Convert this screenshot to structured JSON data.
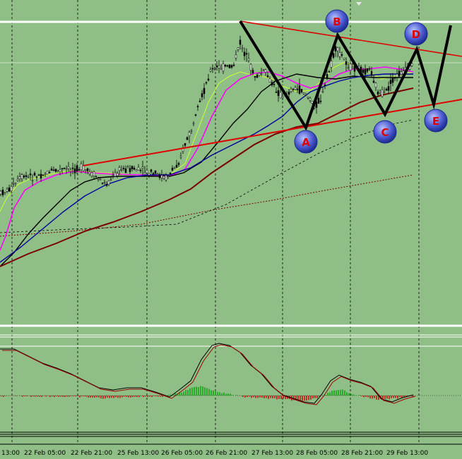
{
  "chart_data": {
    "type": "line",
    "x_tick_labels": [
      "13:00",
      "22 Feb 05:00",
      "22 Feb 21:00",
      "25 Feb 13:00",
      "26 Feb 05:00",
      "26 Feb 21:00",
      "27 Feb 13:00",
      "28 Feb 05:00",
      "28 Feb 21:00",
      "29 Feb 13:00"
    ],
    "wave_labels": [
      "A",
      "B",
      "C",
      "D",
      "E"
    ],
    "grid": true,
    "colors": {
      "background": "#8fbf87",
      "trendline": "#e00000",
      "wave_path": "#000000",
      "candles": "#000000",
      "ma_fast": "#ccff33",
      "ma_magenta": "#ff00ff",
      "ma_black": "#000000",
      "ma_blue": "#0000a0",
      "ma_brown": "#7a0000",
      "signal_bullish": "#00a000",
      "signal_bearish": "#c00000",
      "label_circle": "#4c5bd0"
    }
  }
}
